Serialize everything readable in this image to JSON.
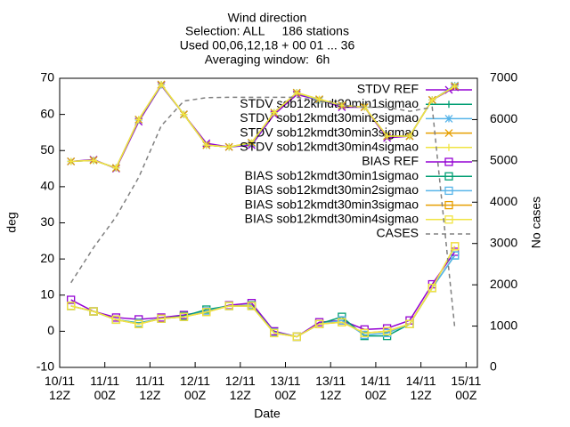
{
  "chart_data": {
    "type": "line",
    "title": [
      "Wind direction",
      "Selection: ALL     186 stations",
      "Used 00,06,12,18 + 00 01 ... 36",
      "Averaging window:  6h"
    ],
    "x_label": "Date",
    "y_label": "deg",
    "y2_label": "No cases",
    "xlim": [
      0,
      111
    ],
    "xticks": [
      {
        "value": 0,
        "label": "10/11\n12Z"
      },
      {
        "value": 12,
        "label": "11/11\n00Z"
      },
      {
        "value": 24,
        "label": "11/11\n12Z"
      },
      {
        "value": 36,
        "label": "12/11\n00Z"
      },
      {
        "value": 48,
        "label": "12/11\n12Z"
      },
      {
        "value": 60,
        "label": "13/11\n00Z"
      },
      {
        "value": 72,
        "label": "13/11\n12Z"
      },
      {
        "value": 84,
        "label": "14/11\n00Z"
      },
      {
        "value": 96,
        "label": "14/11\n12Z"
      },
      {
        "value": 108,
        "label": "15/11\n00Z"
      }
    ],
    "ylim": [
      -10,
      70
    ],
    "yticks": [
      -10,
      0,
      10,
      20,
      30,
      40,
      50,
      60,
      70
    ],
    "y2lim": [
      0,
      7000
    ],
    "y2ticks": [
      0,
      1000,
      2000,
      3000,
      4000,
      5000,
      6000,
      7000
    ],
    "x": [
      3,
      9,
      15,
      21,
      27,
      33,
      39,
      45,
      51,
      57,
      63,
      69,
      75,
      81,
      87,
      93,
      99,
      105
    ],
    "series": [
      {
        "name": "STDV REF",
        "color": "#9400d3",
        "marker": "x",
        "values": [
          47,
          47.5,
          45,
          58,
          68,
          60,
          52,
          51,
          51.5,
          60,
          65.5,
          64,
          62,
          62,
          53.5,
          54,
          64,
          67.5
        ]
      },
      {
        "name": "STDV sob12kmdt30min1sigmao",
        "color": "#009e73",
        "marker": "plus",
        "values": [
          47,
          47.3,
          45.2,
          58.5,
          68.2,
          60,
          51.5,
          51,
          52,
          60.5,
          66,
          64,
          62.5,
          62,
          54,
          54,
          64,
          67.8
        ]
      },
      {
        "name": "STDV sob12kmdt30min2sigmao",
        "color": "#56b4e9",
        "marker": "star",
        "values": [
          47,
          47.3,
          45.2,
          58.5,
          68.2,
          60,
          51.5,
          51,
          52,
          60.5,
          66,
          64,
          62.5,
          62,
          54,
          54,
          64,
          68
        ]
      },
      {
        "name": "STDV sob12kmdt30min3sigmao",
        "color": "#e69f00",
        "marker": "x",
        "values": [
          47,
          47.3,
          45.2,
          58.6,
          68.3,
          60,
          51.5,
          51,
          52.2,
          60.5,
          66,
          64.2,
          62.5,
          62,
          54,
          54,
          64,
          67.8
        ]
      },
      {
        "name": "STDV sob12kmdt30min4sigmao",
        "color": "#f0e442",
        "marker": "plus",
        "values": [
          47,
          47.3,
          45.2,
          58.6,
          68.3,
          60,
          51.5,
          51,
          52.2,
          60.5,
          66,
          64.2,
          62.5,
          62,
          54,
          54,
          64,
          67.8
        ]
      },
      {
        "name": "BIAS REF",
        "color": "#9400d3",
        "marker": "square",
        "values": [
          8.7,
          5.5,
          3.8,
          3.3,
          3.8,
          4.5,
          5.5,
          7.2,
          7.8,
          0,
          -1.5,
          2.5,
          3,
          0.5,
          0.8,
          3,
          13,
          22
        ]
      },
      {
        "name": "BIAS sob12kmdt30min1sigmao",
        "color": "#009e73",
        "marker": "square",
        "values": [
          7,
          5.5,
          3.2,
          2.3,
          3.5,
          4.2,
          6,
          7,
          7.2,
          -0.3,
          -1.5,
          2,
          4,
          -1.3,
          -1.3,
          2,
          12,
          21
        ]
      },
      {
        "name": "BIAS sob12kmdt30min2sigmao",
        "color": "#56b4e9",
        "marker": "square",
        "values": [
          7,
          5.5,
          3.2,
          2.2,
          3.5,
          4,
          5.5,
          7,
          7,
          -0.3,
          -1.5,
          2,
          3,
          -1,
          -0.5,
          2,
          12,
          21
        ]
      },
      {
        "name": "BIAS sob12kmdt30min3sigmao",
        "color": "#e69f00",
        "marker": "square",
        "values": [
          7,
          5.5,
          3.2,
          2,
          3.5,
          4,
          5.3,
          7,
          7,
          -0.5,
          -1.5,
          2,
          2.5,
          -0.5,
          0,
          2,
          12,
          23.5
        ]
      },
      {
        "name": "BIAS sob12kmdt30min4sigmao",
        "color": "#f0e442",
        "marker": "square",
        "values": [
          7,
          5.5,
          3.2,
          2,
          3.5,
          4,
          5.3,
          7,
          7,
          -0.5,
          -1.5,
          2,
          2.5,
          -0.5,
          0,
          2,
          12,
          23.5
        ]
      },
      {
        "name": "CASES",
        "color": "#808080",
        "dash": true,
        "axis": "y2",
        "values": [
          2050,
          2900,
          3650,
          4600,
          5850,
          6450,
          6530,
          6540,
          6540,
          6540,
          6540,
          6450,
          6350,
          6300,
          6300,
          6200,
          6300,
          950
        ]
      }
    ]
  }
}
